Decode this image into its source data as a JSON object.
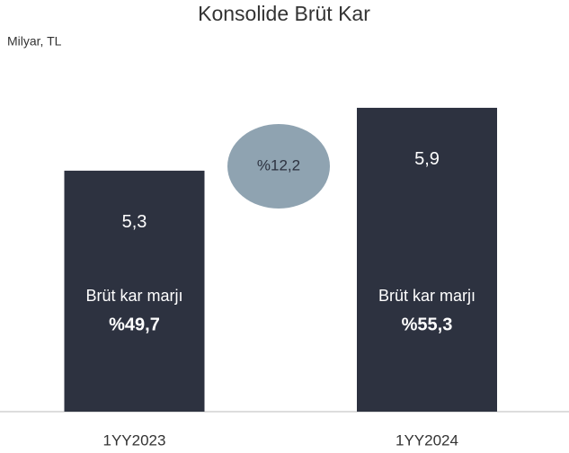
{
  "chart_data": {
    "type": "bar",
    "title": "Konsolide Brüt Kar",
    "subtitle": "Milyar, TL",
    "categories": [
      "1YY2023",
      "1YY2024"
    ],
    "values": [
      5.3,
      5.9
    ],
    "value_labels": [
      "5,3",
      "5,9"
    ],
    "color": "#2d3240",
    "ylim": [
      3,
      6.5
    ],
    "margins": [
      {
        "text": "Brüt kar marjı",
        "value": 49.7,
        "label": "%49,7"
      },
      {
        "text": "Brüt kar marjı",
        "value": 55.3,
        "label": "%55,3"
      }
    ],
    "growth": {
      "value": 12.2,
      "label": "%12,2",
      "color": "#8fa3b1"
    }
  }
}
